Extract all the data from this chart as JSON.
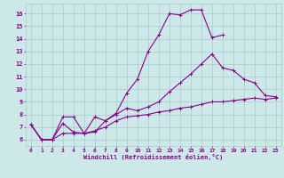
{
  "bg_color": "#cce8e8",
  "grid_color": "#aacccc",
  "line_color": "#880088",
  "xlabel": "Windchill (Refroidissement éolien,°C)",
  "xlim": [
    -0.5,
    23.5
  ],
  "ylim": [
    5.5,
    16.8
  ],
  "yticks": [
    6,
    7,
    8,
    9,
    10,
    11,
    12,
    13,
    14,
    15,
    16
  ],
  "xticks": [
    0,
    1,
    2,
    3,
    4,
    5,
    6,
    7,
    8,
    9,
    10,
    11,
    12,
    13,
    14,
    15,
    16,
    17,
    18,
    19,
    20,
    21,
    22,
    23
  ],
  "series": [
    {
      "x": [
        0,
        1,
        2,
        3,
        4,
        5,
        6,
        7,
        8,
        9,
        10,
        11,
        12,
        13,
        14,
        15,
        16,
        17,
        18
      ],
      "y": [
        7.2,
        6.0,
        6.0,
        7.8,
        7.8,
        6.5,
        6.6,
        7.5,
        8.1,
        9.7,
        10.8,
        13.0,
        14.3,
        16.0,
        15.9,
        16.3,
        16.3,
        14.1,
        14.3
      ]
    },
    {
      "x": [
        0,
        1,
        2,
        3,
        4,
        5,
        6,
        7,
        8,
        9,
        10,
        11,
        12,
        13,
        14,
        15,
        16,
        17,
        18,
        19,
        20,
        21,
        22,
        23
      ],
      "y": [
        7.2,
        6.0,
        6.0,
        7.3,
        6.6,
        6.5,
        7.8,
        7.5,
        8.0,
        8.5,
        8.3,
        8.6,
        9.0,
        9.8,
        10.5,
        11.2,
        12.0,
        12.8,
        11.7,
        11.5,
        10.8,
        10.5,
        9.5,
        9.4
      ]
    },
    {
      "x": [
        0,
        1,
        2,
        3,
        4,
        5,
        6,
        7,
        8,
        9,
        10,
        11,
        12,
        13,
        14,
        15,
        16,
        17,
        18,
        19,
        20,
        21,
        22,
        23
      ],
      "y": [
        7.2,
        6.0,
        6.0,
        6.5,
        6.5,
        6.5,
        6.7,
        7.0,
        7.5,
        7.8,
        7.9,
        8.0,
        8.2,
        8.3,
        8.5,
        8.6,
        8.8,
        9.0,
        9.0,
        9.1,
        9.2,
        9.3,
        9.2,
        9.3
      ]
    }
  ]
}
